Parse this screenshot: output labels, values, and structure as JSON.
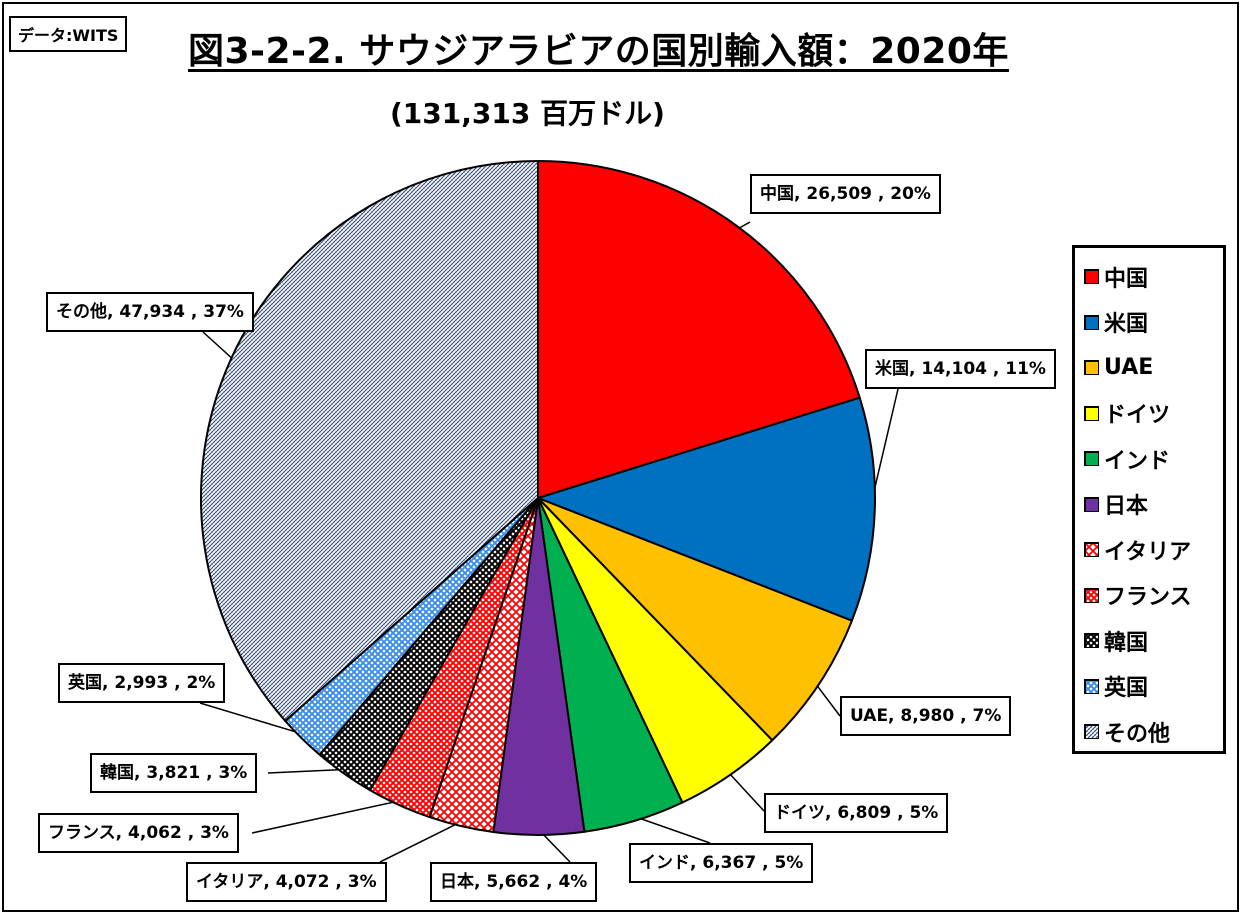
{
  "source_label": "データ:WITS",
  "chart_data": {
    "type": "pie",
    "title": "図3-2-2. サウジアラビアの国別輸入額：2020年",
    "subtitle": "(131,313 百万ドル)",
    "legend_position": "right",
    "slices": [
      {
        "name": "中国",
        "value": 26509,
        "percent": "20%",
        "label": "中国, 26,509 , 20%",
        "color": "#FF0000",
        "pattern": "solid"
      },
      {
        "name": "米国",
        "value": 14104,
        "percent": "11%",
        "label": "米国, 14,104 , 11%",
        "color": "#0070C0",
        "pattern": "solid"
      },
      {
        "name": "UAE",
        "value": 8980,
        "percent": "7%",
        "label": "UAE, 8,980 , 7%",
        "color": "#FFC000",
        "pattern": "solid"
      },
      {
        "name": "ドイツ",
        "value": 6809,
        "percent": "5%",
        "label": "ドイツ, 6,809 , 5%",
        "color": "#FFFF00",
        "pattern": "solid"
      },
      {
        "name": "インド",
        "value": 6367,
        "percent": "5%",
        "label": "インド, 6,367 , 5%",
        "color": "#00B050",
        "pattern": "solid"
      },
      {
        "name": "日本",
        "value": 5662,
        "percent": "4%",
        "label": "日本, 5,662 , 4%",
        "color": "#7030A0",
        "pattern": "solid"
      },
      {
        "name": "イタリア",
        "value": 4072,
        "percent": "3%",
        "label": "イタリア, 4,072 , 3%",
        "color": "#FF0000",
        "pattern": "diamond"
      },
      {
        "name": "フランス",
        "value": 4062,
        "percent": "3%",
        "label": "フランス, 4,062 , 3%",
        "color": "#FF0000",
        "pattern": "check"
      },
      {
        "name": "韓国",
        "value": 3821,
        "percent": "3%",
        "label": "韓国, 3,821 , 3%",
        "color": "#000000",
        "pattern": "check"
      },
      {
        "name": "英国",
        "value": 2993,
        "percent": "2%",
        "label": "英国, 2,993 , 2%",
        "color": "#3C8DE8",
        "pattern": "check"
      },
      {
        "name": "その他",
        "value": 47934,
        "percent": "37%",
        "label": "その他, 47,934 , 37%",
        "color": "#1F3A68",
        "pattern": "fine"
      }
    ]
  }
}
